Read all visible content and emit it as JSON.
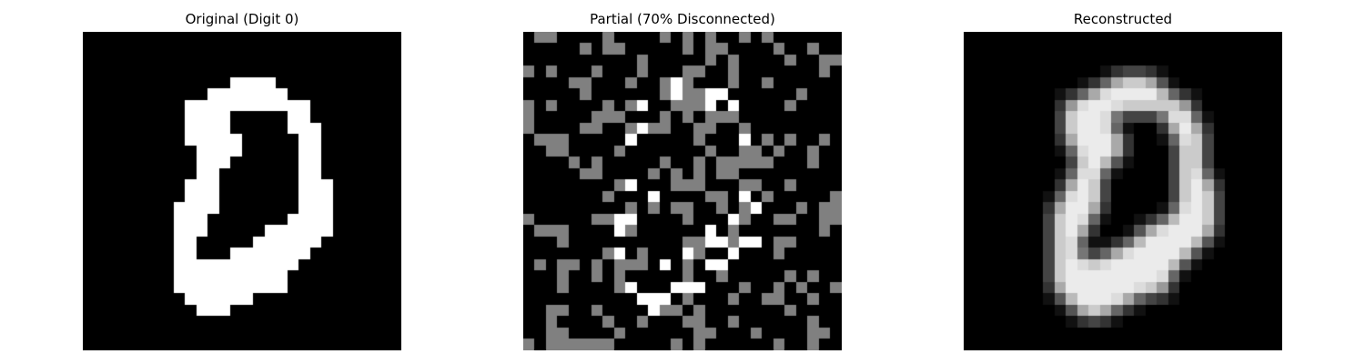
{
  "figure": {
    "panels": [
      {
        "title": "Original (Digit 0)",
        "image": {
          "grid_size": 28,
          "colormap": "gray",
          "content": "binary 28x28 handwritten digit 0 shape"
        }
      },
      {
        "title": "Partial (70% Disconnected)",
        "image": {
          "grid_size": 28,
          "colormap": "gray",
          "content": "28x28 grid, ~70% pixels masked to mid-gray, remaining pixels from the original digit"
        }
      },
      {
        "title": "Reconstructed",
        "image": {
          "grid_size": 28,
          "colormap": "gray",
          "content": "blurry grayscale reconstruction of the digit 0"
        }
      }
    ],
    "colors": {
      "background": "#000000",
      "foreground": "#ffffff",
      "masked": "#808080"
    }
  }
}
